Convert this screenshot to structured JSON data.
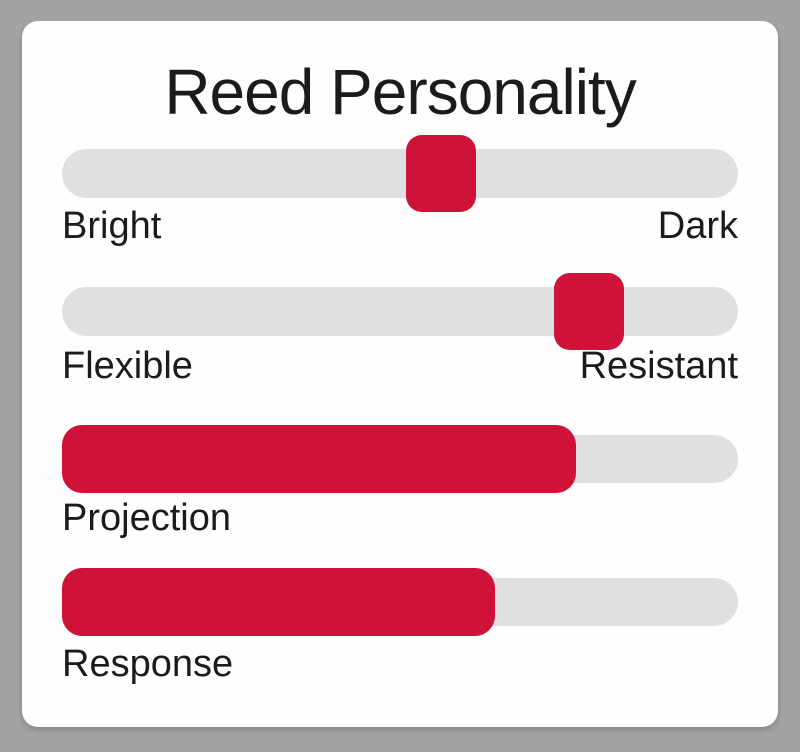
{
  "title": "Reed Personality",
  "colors": {
    "accent": "#ce1238",
    "track": "#e0e0e2",
    "card": "#fefefe",
    "background": "#a3a3a1",
    "text": "#1b1b1b"
  },
  "sliders": [
    {
      "id": "brightness",
      "left_label": "Bright",
      "right_label": "Dark",
      "value_percent": 56
    },
    {
      "id": "flexibility",
      "left_label": "Flexible",
      "right_label": "Resistant",
      "value_percent": 78
    }
  ],
  "bars": [
    {
      "id": "projection",
      "label": "Projection",
      "value_percent": 76
    },
    {
      "id": "response",
      "label": "Response",
      "value_percent": 64
    }
  ]
}
